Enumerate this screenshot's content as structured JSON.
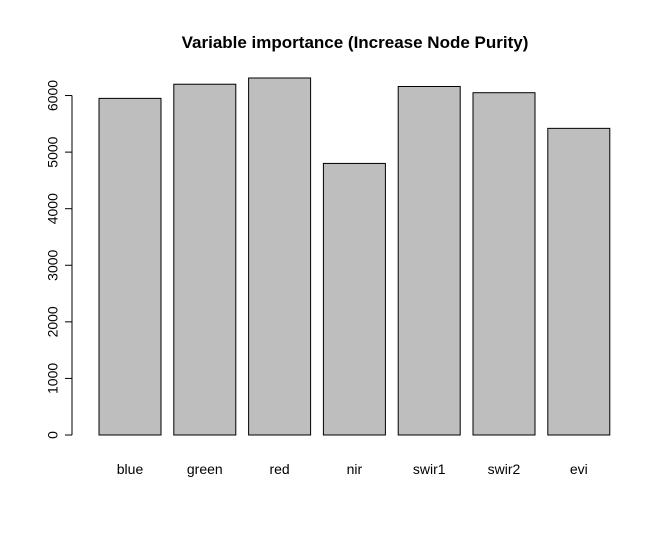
{
  "chart_data": {
    "type": "bar",
    "title": "Variable importance (Increase Node Purity)",
    "xlabel": "",
    "ylabel": "",
    "categories": [
      "blue",
      "green",
      "red",
      "nir",
      "swir1",
      "swir2",
      "evi"
    ],
    "values": [
      5950,
      6200,
      6310,
      4800,
      6160,
      6050,
      5420
    ],
    "ylim": [
      0,
      6310
    ],
    "yticks": [
      0,
      1000,
      2000,
      3000,
      4000,
      5000,
      6000
    ],
    "bar_color": "#bebebe",
    "grid": false,
    "legend": "none"
  }
}
